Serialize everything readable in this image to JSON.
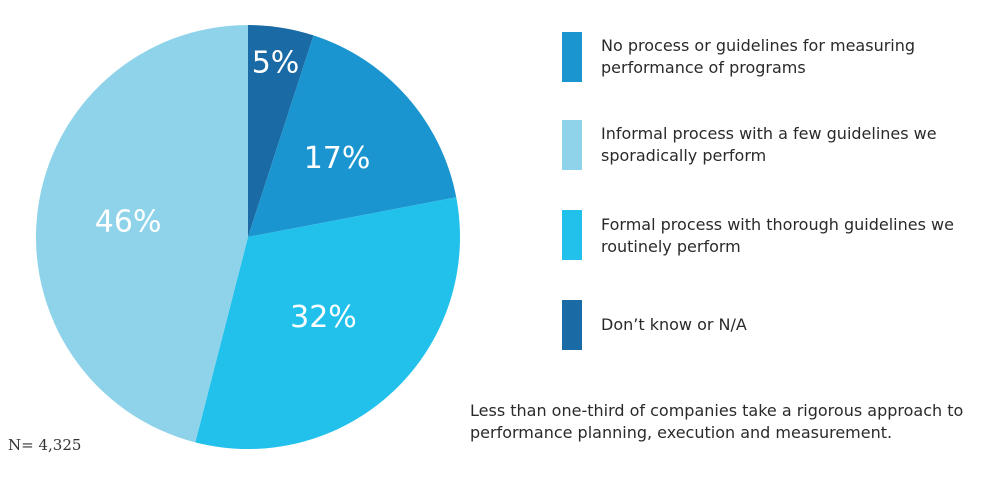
{
  "chart_data": {
    "type": "pie",
    "slices": [
      {
        "label": "Don’t know or N/A",
        "value": 5,
        "display": "5%",
        "color": "#1a6aa5"
      },
      {
        "label": "No process or guidelines for measuring performance of programs",
        "value": 17,
        "display": "17%",
        "color": "#1b95cf"
      },
      {
        "label": "Formal process with thorough guidelines we routinely perform",
        "value": 32,
        "display": "32%",
        "color": "#21c1ec"
      },
      {
        "label": "Informal process with a few guidelines we sporadically perform",
        "value": 46,
        "display": "46%",
        "color": "#8ed3e9"
      }
    ],
    "legend": [
      {
        "label": "No process or guidelines for measuring performance of programs",
        "color": "#1b95cf"
      },
      {
        "label": "Informal process with a few guidelines we sporadically perform",
        "color": "#8ed3e9"
      },
      {
        "label": "Formal process with thorough guidelines we routinely perform",
        "color": "#21c1ec"
      },
      {
        "label": "Don’t know or N/A",
        "color": "#1a6aa5"
      }
    ],
    "legend_placement": "right",
    "sample_size": "N= 4,325",
    "note": "Less than one-third of companies take a rigorous approach to performance planning, execution and measurement."
  }
}
